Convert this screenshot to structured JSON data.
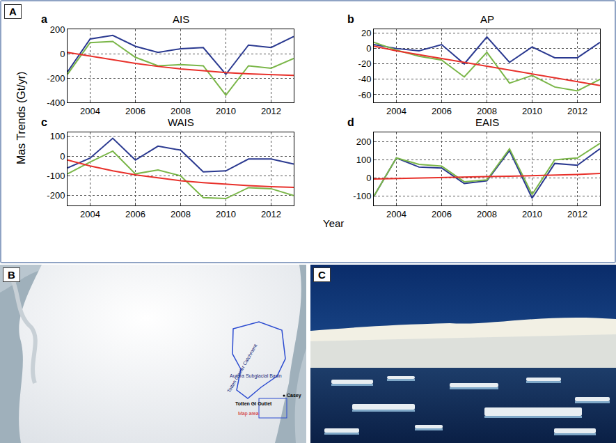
{
  "panel_labels": [
    "A",
    "B",
    "C"
  ],
  "panel_A": {
    "ylabel": "Mas Trends (Gt/yr)",
    "xlabel": "Year"
  },
  "chart_data": [
    {
      "type": "line",
      "letter": "a",
      "title": "AIS",
      "x": [
        2003,
        2004,
        2005,
        2006,
        2007,
        2008,
        2009,
        2010,
        2011,
        2012,
        2013
      ],
      "xlim": [
        2003,
        2013
      ],
      "xticks": [
        2004,
        2006,
        2008,
        2010,
        2012
      ],
      "ylim": [
        -400,
        200
      ],
      "yticks": [
        -400,
        -200,
        0,
        200
      ],
      "grid": true,
      "series": [
        {
          "color": "#2a3990",
          "values": [
            -150,
            120,
            150,
            60,
            10,
            40,
            50,
            -170,
            70,
            50,
            140
          ]
        },
        {
          "color": "#7ab648",
          "values": [
            -170,
            90,
            100,
            -30,
            -100,
            -90,
            -100,
            -340,
            -100,
            -120,
            -40
          ]
        },
        {
          "color": "#e8302a",
          "values": [
            10,
            -20,
            -50,
            -80,
            -105,
            -125,
            -140,
            -155,
            -165,
            -172,
            -178
          ]
        }
      ]
    },
    {
      "type": "line",
      "letter": "b",
      "title": "AP",
      "x": [
        2003,
        2004,
        2005,
        2006,
        2007,
        2008,
        2009,
        2010,
        2011,
        2012,
        2013
      ],
      "xlim": [
        2003,
        2013
      ],
      "xticks": [
        2004,
        2006,
        2008,
        2010,
        2012
      ],
      "ylim": [
        -70,
        25
      ],
      "yticks": [
        -60,
        -40,
        -20,
        0,
        20
      ],
      "grid": true,
      "series": [
        {
          "color": "#2a3990",
          "values": [
            5,
            0,
            -3,
            5,
            -20,
            15,
            -18,
            2,
            -12,
            -12,
            8
          ]
        },
        {
          "color": "#7ab648",
          "values": [
            8,
            -2,
            -10,
            -15,
            -37,
            -5,
            -45,
            -35,
            -50,
            -55,
            -40
          ]
        },
        {
          "color": "#e8302a",
          "values": [
            3,
            -3,
            -8,
            -13,
            -18,
            -23,
            -28,
            -33,
            -38,
            -43,
            -48
          ]
        }
      ]
    },
    {
      "type": "line",
      "letter": "c",
      "title": "WAIS",
      "x": [
        2003,
        2004,
        2005,
        2006,
        2007,
        2008,
        2009,
        2010,
        2011,
        2012,
        2013
      ],
      "xlim": [
        2003,
        2013
      ],
      "xticks": [
        2004,
        2006,
        2008,
        2010,
        2012
      ],
      "ylim": [
        -250,
        120
      ],
      "yticks": [
        -200,
        -100,
        0,
        100
      ],
      "grid": true,
      "series": [
        {
          "color": "#2a3990",
          "values": [
            -60,
            -10,
            90,
            -20,
            50,
            30,
            -80,
            -75,
            -15,
            -15,
            -40
          ]
        },
        {
          "color": "#7ab648",
          "values": [
            -90,
            -30,
            25,
            -90,
            -70,
            -100,
            -210,
            -215,
            -160,
            -165,
            -200
          ]
        },
        {
          "color": "#e8302a",
          "values": [
            -20,
            -50,
            -75,
            -95,
            -110,
            -125,
            -135,
            -143,
            -150,
            -155,
            -158
          ]
        }
      ]
    },
    {
      "type": "line",
      "letter": "d",
      "title": "EAIS",
      "x": [
        2003,
        2004,
        2005,
        2006,
        2007,
        2008,
        2009,
        2010,
        2011,
        2012,
        2013
      ],
      "xlim": [
        2003,
        2013
      ],
      "xticks": [
        2004,
        2006,
        2008,
        2010,
        2012
      ],
      "ylim": [
        -150,
        250
      ],
      "yticks": [
        -100,
        0,
        100,
        200
      ],
      "grid": true,
      "series": [
        {
          "color": "#2a3990",
          "values": [
            -100,
            110,
            60,
            55,
            -30,
            -15,
            150,
            -110,
            80,
            70,
            160
          ]
        },
        {
          "color": "#7ab648",
          "values": [
            -100,
            110,
            75,
            65,
            -20,
            -10,
            160,
            -90,
            100,
            110,
            190
          ]
        },
        {
          "color": "#e8302a",
          "values": [
            -5,
            -2,
            0,
            3,
            5,
            8,
            10,
            13,
            16,
            20,
            25
          ]
        }
      ]
    }
  ],
  "map": {
    "labels": [
      "Totten Glacier Catchment",
      "Aurora Subglacial Basin",
      "Totten Gl Outlet",
      "Casey",
      "Map area"
    ]
  }
}
